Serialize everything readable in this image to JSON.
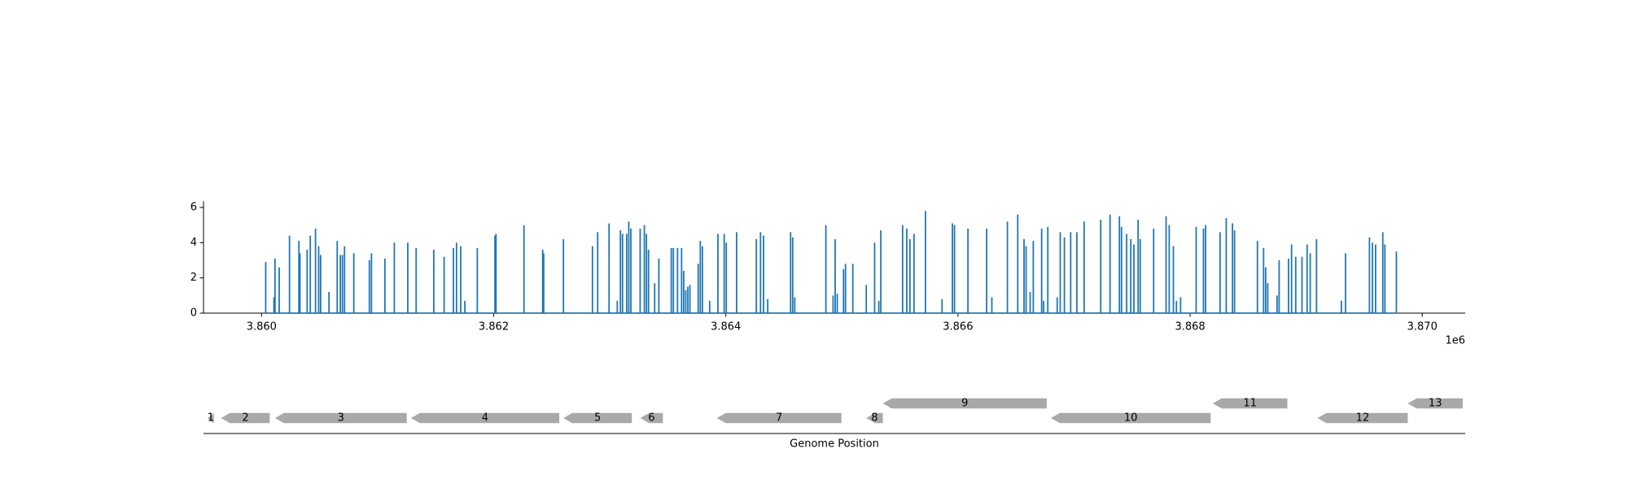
{
  "chart_data": {
    "type": "spike",
    "color": "#1f77b4",
    "x": [
      3860036,
      3860107,
      3860116,
      3860152,
      3860241,
      3860322,
      3860331,
      3860393,
      3860420,
      3860465,
      3860492,
      3860509,
      3860581,
      3860652,
      3860679,
      3860697,
      3860715,
      3860795,
      3860929,
      3860947,
      3861063,
      3861144,
      3861260,
      3861332,
      3861484,
      3861573,
      3861653,
      3861680,
      3861716,
      3861752,
      3861859,
      3862011,
      3862020,
      3862261,
      3862422,
      3862431,
      3862601,
      3862851,
      3862896,
      3862994,
      3863065,
      3863092,
      3863110,
      3863146,
      3863164,
      3863182,
      3863262,
      3863298,
      3863316,
      3863334,
      3863387,
      3863423,
      3863530,
      3863548,
      3863584,
      3863619,
      3863637,
      3863655,
      3863673,
      3863691,
      3863762,
      3863780,
      3863798,
      3863861,
      3863932,
      3863986,
      3864004,
      3864093,
      3864263,
      3864299,
      3864325,
      3864361,
      3864558,
      3864576,
      3864594,
      3864862,
      3864924,
      3864942,
      3864960,
      3865014,
      3865031,
      3865094,
      3865210,
      3865282,
      3865318,
      3865335,
      3865523,
      3865559,
      3865586,
      3865621,
      3865720,
      3865863,
      3865952,
      3865970,
      3866086,
      3866247,
      3866292,
      3866426,
      3866515,
      3866569,
      3866587,
      3866622,
      3866649,
      3866721,
      3866738,
      3866774,
      3866855,
      3866881,
      3866917,
      3866971,
      3867024,
      3867087,
      3867230,
      3867310,
      3867391,
      3867409,
      3867453,
      3867489,
      3867516,
      3867552,
      3867570,
      3867686,
      3867793,
      3867820,
      3867856,
      3867882,
      3867918,
      3868052,
      3868115,
      3868133,
      3868258,
      3868311,
      3868365,
      3868383,
      3868580,
      3868633,
      3868651,
      3868669,
      3868749,
      3868767,
      3868848,
      3868874,
      3868910,
      3868964,
      3869008,
      3869035,
      3869089,
      3869303,
      3869339,
      3869545,
      3869571,
      3869598,
      3869660,
      3869678,
      3869777
    ],
    "values": [
      2.9,
      0.9,
      3.1,
      2.6,
      4.4,
      4.1,
      3.4,
      3.6,
      4.4,
      4.8,
      3.8,
      3.3,
      1.2,
      4.1,
      3.3,
      3.3,
      3.8,
      3.4,
      3.0,
      3.4,
      3.1,
      4.0,
      4.0,
      3.7,
      3.6,
      3.2,
      3.7,
      4.0,
      3.8,
      0.7,
      3.7,
      4.4,
      4.5,
      5.0,
      3.6,
      3.4,
      4.2,
      3.8,
      4.6,
      5.1,
      0.7,
      4.7,
      4.5,
      4.5,
      5.2,
      4.8,
      4.8,
      5.0,
      4.5,
      3.6,
      1.7,
      3.1,
      3.7,
      3.7,
      3.7,
      3.7,
      2.4,
      1.3,
      1.5,
      1.6,
      2.8,
      4.1,
      3.8,
      0.7,
      4.5,
      4.5,
      4.0,
      4.6,
      4.2,
      4.6,
      4.4,
      0.8,
      4.6,
      4.3,
      0.9,
      5.0,
      1.0,
      4.2,
      1.1,
      2.5,
      2.8,
      2.8,
      1.6,
      4.0,
      0.7,
      4.7,
      5.0,
      4.8,
      4.2,
      4.5,
      5.8,
      0.8,
      5.1,
      5.0,
      4.8,
      4.8,
      0.9,
      5.2,
      5.6,
      4.2,
      3.8,
      1.2,
      4.1,
      4.8,
      0.7,
      4.9,
      0.9,
      4.6,
      4.3,
      4.6,
      4.6,
      5.2,
      5.3,
      5.6,
      5.5,
      4.9,
      4.5,
      4.2,
      3.9,
      5.3,
      4.2,
      4.8,
      5.5,
      5.0,
      3.8,
      0.7,
      0.9,
      4.9,
      4.8,
      5.0,
      4.6,
      5.4,
      5.1,
      4.7,
      4.1,
      3.7,
      2.6,
      1.7,
      1.0,
      3.0,
      3.1,
      3.9,
      3.2,
      3.2,
      3.9,
      3.4,
      4.2,
      0.7,
      3.4,
      4.3,
      4.0,
      3.9,
      4.6,
      3.9,
      3.5
    ],
    "xlim": [
      3859500,
      3870370
    ],
    "ylim": [
      0,
      6.35
    ],
    "xticks": [
      {
        "value": 3860000,
        "label": "3.860"
      },
      {
        "value": 3862000,
        "label": "3.862"
      },
      {
        "value": 3864000,
        "label": "3.864"
      },
      {
        "value": 3866000,
        "label": "3.866"
      },
      {
        "value": 3868000,
        "label": "3.868"
      },
      {
        "value": 3870000,
        "label": "3.870"
      }
    ],
    "x_offset_label": "1e6",
    "yticks": [
      0,
      2,
      4,
      6
    ],
    "gene_track": {
      "xlabel": "Genome Position",
      "color": "#a9a9a9",
      "genes": [
        {
          "label": "1",
          "start": 3859535,
          "end": 3859589,
          "strand": -1
        },
        {
          "label": "2",
          "start": 3859651,
          "end": 3860071,
          "strand": -1
        },
        {
          "label": "3",
          "start": 3860116,
          "end": 3861251,
          "strand": -1
        },
        {
          "label": "4",
          "start": 3861287,
          "end": 3862565,
          "strand": -1
        },
        {
          "label": "5",
          "start": 3862600,
          "end": 3863190,
          "strand": -1
        },
        {
          "label": "6",
          "start": 3863262,
          "end": 3863458,
          "strand": -1
        },
        {
          "label": "7",
          "start": 3863923,
          "end": 3864996,
          "strand": -1
        },
        {
          "label": "8",
          "start": 3865210,
          "end": 3865353,
          "strand": -1
        },
        {
          "label": "9",
          "start": 3865353,
          "end": 3866765,
          "strand": -1
        },
        {
          "label": "10",
          "start": 3866801,
          "end": 3868177,
          "strand": -1
        },
        {
          "label": "11",
          "start": 3868195,
          "end": 3868838,
          "strand": -1
        },
        {
          "label": "12",
          "start": 3869097,
          "end": 3869875,
          "strand": -1
        },
        {
          "label": "13",
          "start": 3869875,
          "end": 3870349,
          "strand": -1
        }
      ]
    }
  }
}
